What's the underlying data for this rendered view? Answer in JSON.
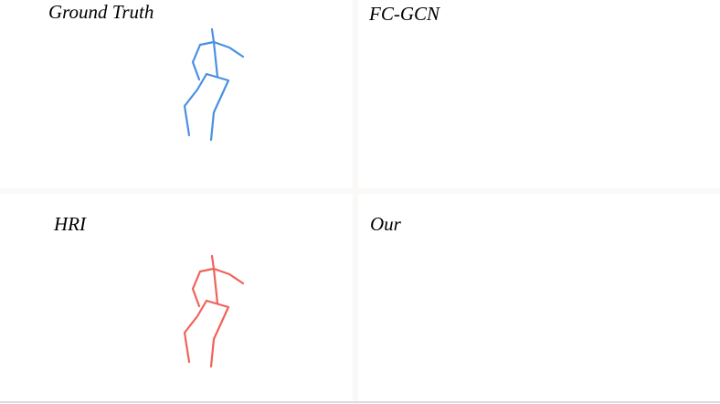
{
  "panels": [
    {
      "label": "Ground Truth",
      "color": "#4a90e2"
    },
    {
      "label": "FC-GCN",
      "color": "#f0625a"
    },
    {
      "label": "HRI",
      "color": "#f0625a"
    },
    {
      "label": "Our",
      "color": "#f0625a"
    }
  ]
}
